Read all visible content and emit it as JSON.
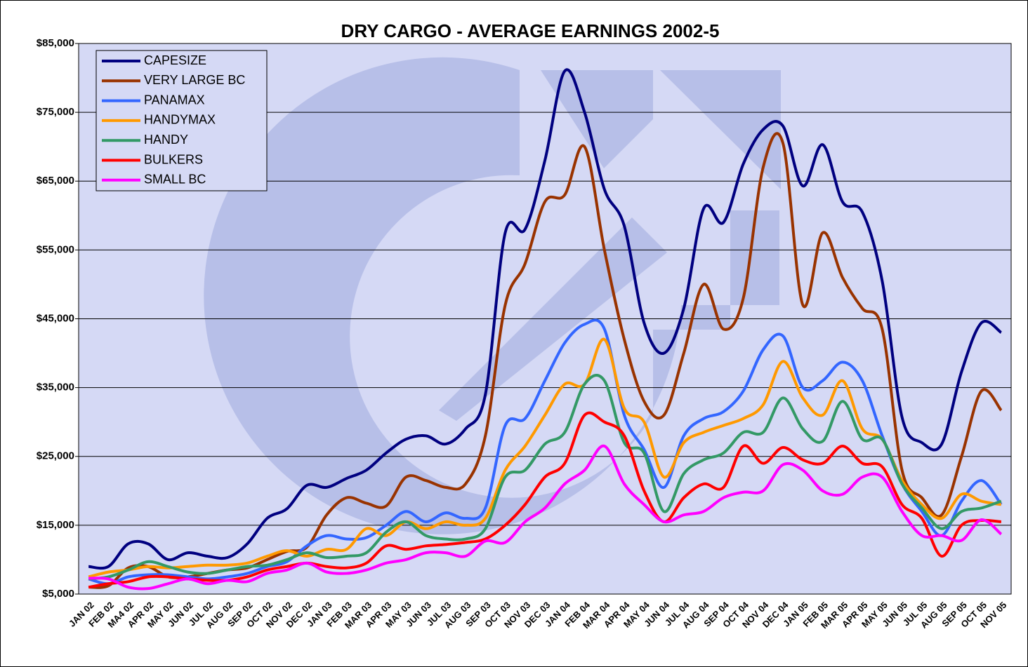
{
  "chart_data": {
    "type": "line",
    "title": "DRY CARGO - AVERAGE EARNINGS 2002-5",
    "categories": [
      "JAN 02",
      "FEB 02",
      "MA4 02",
      "APR 02",
      "MAY 02",
      "JUN 02",
      "JUL 02",
      "AUG 02",
      "SEP 02",
      "OCT 02",
      "NOV 02",
      "DEC 02",
      "JAN 03",
      "FEB 03",
      "MAR 03",
      "APR 03",
      "MAY 03",
      "JUN 03",
      "JUL 03",
      "AUG 03",
      "SEP 03",
      "OCT 03",
      "NOV 03",
      "DEC 03",
      "JAN 04",
      "FEB 04",
      "MAR 04",
      "APR 04",
      "MAY 04",
      "JUN 04",
      "JUL 04",
      "AUG 04",
      "SEP 04",
      "OCT 04",
      "NOV 04",
      "DEC 04",
      "JAN 05",
      "FEB 05",
      "MAR 05",
      "APR 05",
      "MAY 05",
      "JUN 05",
      "JUL 05",
      "AUG 05",
      "SEP 05",
      "OCT 05",
      "NOV 05"
    ],
    "series": [
      {
        "name": "CAPESIZE",
        "color": "#000080",
        "values": [
          9000,
          9000,
          12300,
          12300,
          10000,
          11000,
          10500,
          10300,
          12300,
          16000,
          17400,
          20800,
          20500,
          21800,
          23000,
          25500,
          27500,
          28000,
          26800,
          29000,
          34000,
          57500,
          58000,
          68000,
          81000,
          75000,
          63800,
          58500,
          44400,
          40000,
          46500,
          61000,
          59000,
          67500,
          72500,
          73000,
          64300,
          70300,
          62000,
          60500,
          50500,
          30700,
          27000,
          26800,
          37300,
          44400,
          43000
        ]
      },
      {
        "name": "VERY LARGE BC",
        "color": "#993300",
        "values": [
          6000,
          6200,
          8800,
          9000,
          7500,
          7500,
          8000,
          8500,
          8800,
          10000,
          11200,
          11800,
          16500,
          19000,
          18200,
          17800,
          22000,
          21500,
          20500,
          21000,
          28000,
          47000,
          53000,
          62000,
          63000,
          70000,
          55000,
          42000,
          33000,
          31000,
          40000,
          50000,
          43500,
          48000,
          67000,
          70500,
          47000,
          57500,
          51000,
          46500,
          43500,
          23000,
          19000,
          16500,
          25000,
          34500,
          31700
        ]
      },
      {
        "name": "PANAMAX",
        "color": "#3366ff",
        "values": [
          7200,
          6500,
          7500,
          7800,
          7800,
          7500,
          7200,
          7500,
          8000,
          9000,
          9700,
          12000,
          13500,
          13000,
          13200,
          15000,
          17000,
          15500,
          16800,
          16000,
          17500,
          29500,
          30500,
          36000,
          41500,
          44200,
          43500,
          31000,
          26000,
          20500,
          28000,
          30500,
          31500,
          34500,
          40500,
          42500,
          35000,
          36000,
          38700,
          36000,
          28000,
          21000,
          17000,
          13500,
          18500,
          21500,
          18000
        ]
      },
      {
        "name": "HANDYMAX",
        "color": "#ff9900",
        "values": [
          7500,
          8200,
          8500,
          9000,
          8800,
          9000,
          9200,
          9200,
          9500,
          10500,
          11300,
          10500,
          11500,
          11500,
          14500,
          13500,
          15500,
          14500,
          15500,
          15000,
          16000,
          23000,
          26500,
          31000,
          35500,
          35500,
          42000,
          32000,
          30000,
          22000,
          27000,
          28500,
          29500,
          30500,
          32500,
          38800,
          33500,
          31000,
          36000,
          29000,
          27500,
          21500,
          18000,
          16000,
          19500,
          18500,
          18000
        ]
      },
      {
        "name": "HANDY",
        "color": "#339966",
        "values": [
          7200,
          7500,
          8500,
          9700,
          9000,
          8200,
          8000,
          8500,
          9000,
          9200,
          10000,
          11000,
          10300,
          10500,
          11000,
          14000,
          15500,
          13500,
          13000,
          13000,
          14500,
          22000,
          23000,
          26800,
          28500,
          35500,
          36000,
          27000,
          25500,
          17000,
          22500,
          24500,
          25500,
          28500,
          28500,
          33500,
          29000,
          27200,
          33000,
          27500,
          27500,
          21000,
          17500,
          14500,
          17000,
          17500,
          18500
        ]
      },
      {
        "name": "BULKERS",
        "color": "#ff0000",
        "values": [
          6000,
          6500,
          6800,
          7500,
          7500,
          7200,
          7000,
          7000,
          7500,
          8500,
          9000,
          9500,
          9000,
          8800,
          9500,
          12000,
          11500,
          12000,
          12200,
          12500,
          13000,
          15000,
          18000,
          22000,
          24000,
          31000,
          30000,
          28000,
          20000,
          15500,
          19000,
          21000,
          20500,
          26500,
          24000,
          26300,
          24500,
          24000,
          26500,
          24000,
          23500,
          18000,
          16000,
          10500,
          15000,
          15700,
          15500
        ]
      },
      {
        "name": "SMALL BC",
        "color": "#ff00ff",
        "values": [
          7300,
          7200,
          6000,
          5800,
          6500,
          7200,
          6500,
          7000,
          6800,
          8000,
          8500,
          9500,
          8200,
          8000,
          8500,
          9500,
          10000,
          11000,
          11000,
          10500,
          12700,
          12500,
          15500,
          17500,
          21000,
          23000,
          26500,
          21000,
          18000,
          15500,
          16500,
          17000,
          19000,
          19800,
          20000,
          23800,
          23000,
          20000,
          19500,
          22000,
          22000,
          17000,
          13500,
          13500,
          12800,
          15800,
          13700
        ]
      }
    ],
    "ylim": [
      5000,
      85000
    ],
    "yticks": [
      {
        "value": 5000,
        "label": "$5,000"
      },
      {
        "value": 15000,
        "label": "$15,000"
      },
      {
        "value": 25000,
        "label": "$25,000"
      },
      {
        "value": 35000,
        "label": "$35,000"
      },
      {
        "value": 45000,
        "label": "$45,000"
      },
      {
        "value": 55000,
        "label": "$55,000"
      },
      {
        "value": 65000,
        "label": "$65,000"
      },
      {
        "value": 75000,
        "label": "$75,000"
      },
      {
        "value": 85000,
        "label": "$85,000"
      }
    ],
    "grid": true,
    "legend": "top-left",
    "plot_background": "#d5d9f5"
  }
}
